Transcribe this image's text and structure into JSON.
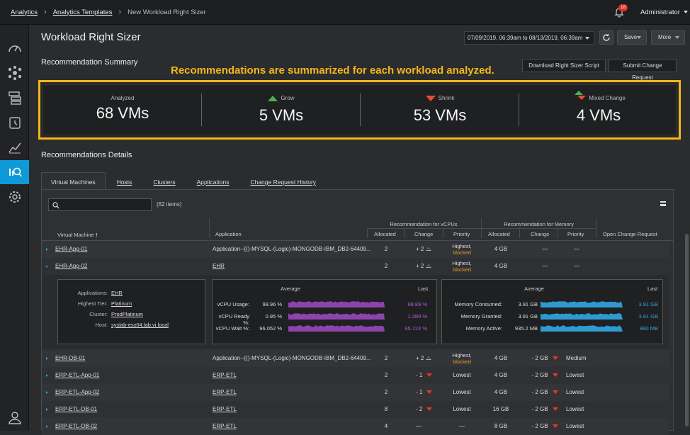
{
  "breadcrumb": {
    "item1": "Analytics",
    "item2": "Analytics Templates",
    "current": "New Workload Right Sizer"
  },
  "notifications": {
    "count": "18"
  },
  "user": {
    "label": "Administrator"
  },
  "page": {
    "title": "Workload Right Sizer",
    "date_range": "07/09/2019, 06:39am to 08/13/2019, 06:39am",
    "save_label": "Save",
    "more_label": "More"
  },
  "summary": {
    "heading": "Recommendation Summary",
    "annotation": "Recommendations are summarized for each workload analyzed.",
    "download_label": "Download Right Sizer Script",
    "submit_label": "Submit Change Request",
    "stats": [
      {
        "label": "Analyzed",
        "value": "68 VMs"
      },
      {
        "label": "Grow",
        "value": "5 VMs"
      },
      {
        "label": "Shrink",
        "value": "53 VMs"
      },
      {
        "label": "Mixed Change",
        "value": "4 VMs"
      }
    ]
  },
  "details": {
    "heading": "Recommendations Details",
    "tabs": [
      "Virtual Machines",
      "Hosts",
      "Clusters",
      "Applications",
      "Change Request History"
    ],
    "items_count": "(62 items)",
    "group_vcpu": "Recommendation for vCPUs",
    "group_mem": "Recommendation for Memory",
    "columns": [
      "Virtual Machine",
      "Application",
      "Allocated",
      "Change",
      "Priority",
      "Allocated",
      "Change",
      "Priority",
      "Open Change Request"
    ]
  },
  "rows": [
    {
      "vm": "EHR-App-01",
      "app": "Application--{()-MYSQL-(Logic)-MONGODB-IBM_DB2-64409...",
      "cpu_alloc": "2",
      "cpu_change": "+ 2",
      "cpu_pri1": "Highest,",
      "cpu_pri2": "blocked",
      "mem_alloc": "4 GB",
      "mem_change": "—",
      "mem_pri": "—"
    },
    {
      "vm": "EHR-App-02",
      "app": "EHR",
      "cpu_alloc": "2",
      "cpu_change": "+ 2",
      "cpu_pri1": "Highest,",
      "cpu_pri2": "blocked",
      "mem_alloc": "4 GB",
      "mem_change": "—",
      "mem_pri": "—"
    },
    {
      "vm": "EHR-DB-01",
      "app": "Application--{()-MYSQL-(Logic)-MONGODB-IBM_DB2-64409...",
      "cpu_alloc": "2",
      "cpu_change": "+ 2",
      "cpu_pri1": "Highest,",
      "cpu_pri2": "blocked",
      "mem_alloc": "4 GB",
      "mem_change": "- 2 GB",
      "mem_pri": "Medium"
    },
    {
      "vm": "ERP-ETL-App-01",
      "app": "ERP-ETL",
      "cpu_alloc": "2",
      "cpu_change": "- 1",
      "cpu_pri": "Lowest",
      "mem_alloc": "4 GB",
      "mem_change": "- 2 GB",
      "mem_pri": "Lowest"
    },
    {
      "vm": "ERP-ETL-App-02",
      "app": "ERP-ETL",
      "cpu_alloc": "2",
      "cpu_change": "- 1",
      "cpu_pri": "Lowest",
      "mem_alloc": "4 GB",
      "mem_change": "- 2 GB",
      "mem_pri": "Lowest"
    },
    {
      "vm": "ERP-ETL-DB-01",
      "app": "ERP-ETL",
      "cpu_alloc": "8",
      "cpu_change": "- 2",
      "cpu_pri": "Lowest",
      "mem_alloc": "16 GB",
      "mem_change": "- 2 GB",
      "mem_pri": "Lowest"
    },
    {
      "vm": "ERP-ETL-DB-02",
      "app": "ERP-ETL",
      "cpu_alloc": "4",
      "cpu_change": "—",
      "cpu_pri": "—",
      "mem_alloc": "8 GB",
      "mem_change": "- 2 GB",
      "mem_pri": "Lowest"
    }
  ],
  "detail": {
    "keys": [
      "Applications:",
      "Highest Tier:",
      "Cluster:",
      "Host:"
    ],
    "values": [
      "EHR",
      "Platinum",
      "ProdPlatinum",
      "syslab-esx04.lab.vi.local"
    ],
    "avg_label": "Average",
    "last_label": "Last",
    "cpu": [
      {
        "label": "vCPU Usage:",
        "avg": "99.96 %",
        "last": "98.89 %",
        "fill": 1.0
      },
      {
        "label": "vCPU Ready %:",
        "avg": "0.95 %",
        "last": "1.389 %",
        "fill": 1.0
      },
      {
        "label": "vCPU Wait %:",
        "avg": "96.052 %",
        "last": "95.724 %",
        "fill": 1.0
      }
    ],
    "mem": [
      {
        "label": "Memory Consumed:",
        "avg": "3.91 GB",
        "last": "3.91 GB"
      },
      {
        "label": "Memory Granted:",
        "avg": "3.91 GB",
        "last": "3.91 GB"
      },
      {
        "label": "Memory Active:",
        "avg": "935.2 MB",
        "last": "880 MB"
      }
    ],
    "colors": {
      "cpu": "#8e44ad",
      "mem": "#2e9ad0",
      "cpu_last": "#b05cd6",
      "mem_last": "#3aa3dc"
    }
  }
}
